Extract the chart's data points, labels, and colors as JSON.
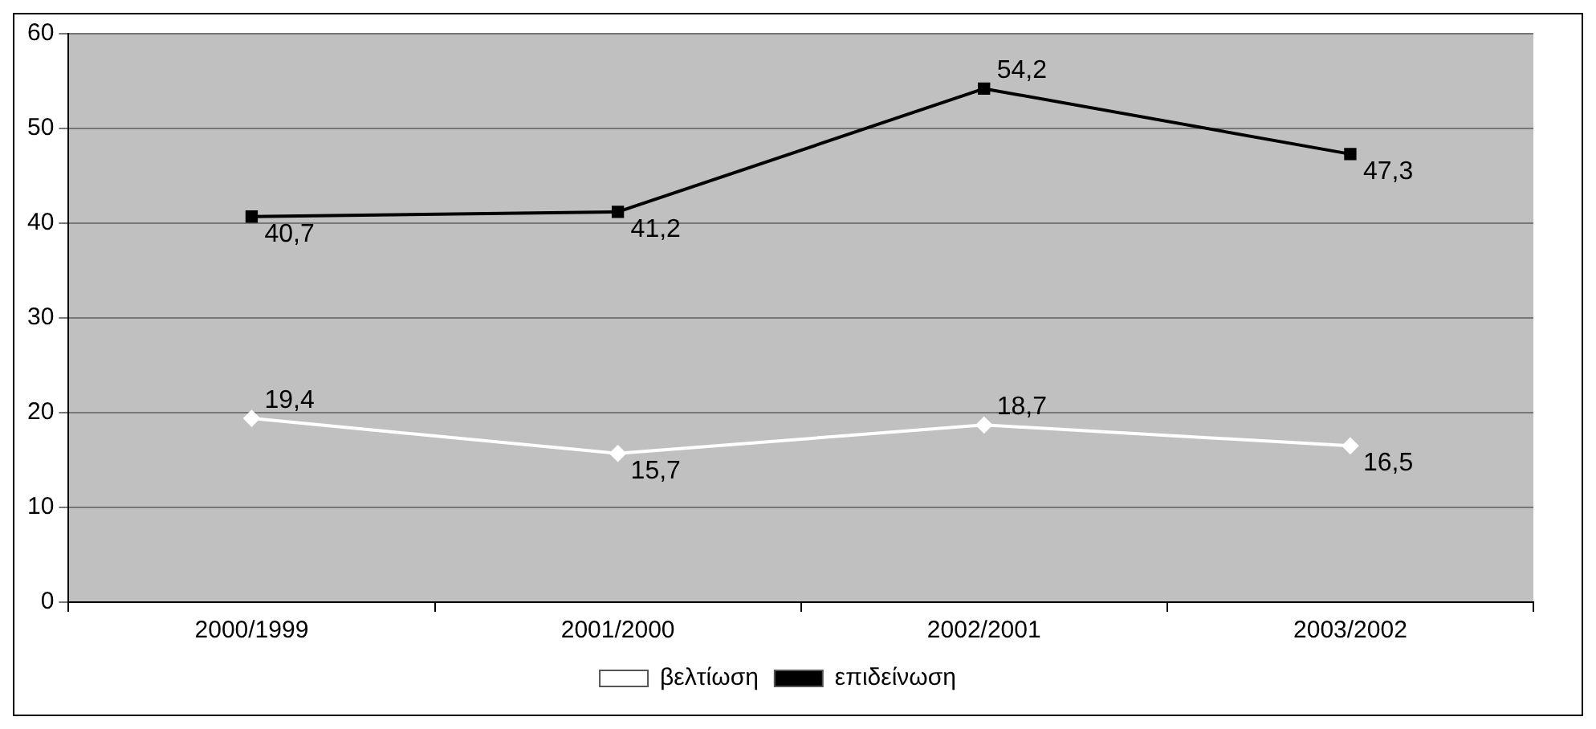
{
  "chart_data": {
    "type": "line",
    "categories": [
      "2000/1999",
      "2001/2000",
      "2002/2001",
      "2003/2002"
    ],
    "series": [
      {
        "name": "βελτίωση",
        "color": "#ffffff",
        "marker": "diamond",
        "values": [
          19.4,
          15.7,
          18.7,
          16.5
        ],
        "value_labels": [
          "19,4",
          "15,7",
          "18,7",
          "16,5"
        ]
      },
      {
        "name": "επιδείνωση",
        "color": "#000000",
        "marker": "square",
        "values": [
          40.7,
          41.2,
          54.2,
          47.3
        ],
        "value_labels": [
          "40,7",
          "41,2",
          "54,2",
          "47,3"
        ]
      }
    ],
    "ylim": [
      0,
      60
    ],
    "yticks": [
      0,
      10,
      20,
      30,
      40,
      50,
      60
    ],
    "grid": "y",
    "legend": "bottom",
    "line_style": "solid"
  }
}
